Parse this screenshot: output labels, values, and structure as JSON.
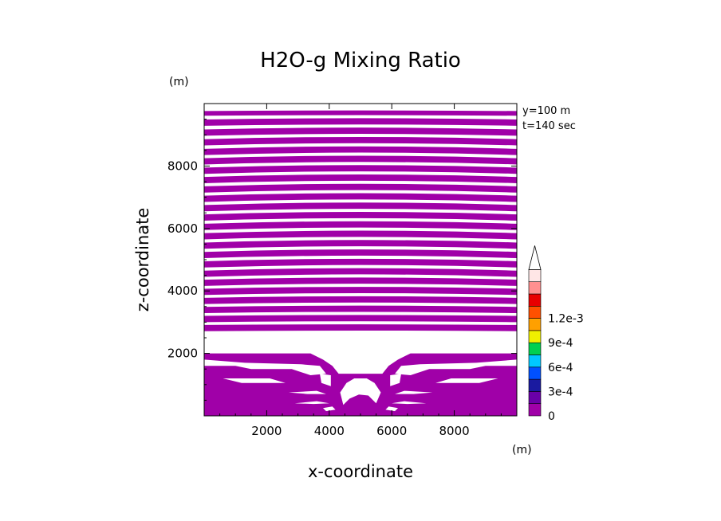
{
  "chart_data": {
    "type": "heatmap",
    "title": "H2O-g Mixing Ratio",
    "xlabel": "x-coordinate",
    "ylabel": "z-coordinate",
    "x_unit": "(m)",
    "y_unit": "(m)",
    "annotations": [
      "y=100 m",
      "t=140 sec"
    ],
    "xlim": [
      0,
      10000
    ],
    "ylim": [
      0,
      10000
    ],
    "x_ticks": [
      2000,
      4000,
      6000,
      8000
    ],
    "y_ticks": [
      2000,
      4000,
      6000,
      8000
    ],
    "colorbar": {
      "levels": [
        0,
        0.00015,
        0.0003,
        0.00045,
        0.0006,
        0.00075,
        0.0009,
        0.00105,
        0.0012,
        0.00135
      ],
      "colors": [
        "#a000a8",
        "#6a00a8",
        "#1a1aa0",
        "#0050ff",
        "#00c8ff",
        "#00d050",
        "#f0f000",
        "#ffa000",
        "#ff5000",
        "#e80000",
        "#ff9090",
        "#ffe6e6"
      ],
      "tick_labels": [
        "0",
        "3e-4",
        "6e-4",
        "9e-4",
        "1.2e-3"
      ],
      "tick_values": [
        0,
        0.0003,
        0.0006,
        0.0009,
        0.0012
      ],
      "extend": "max"
    },
    "filled_value_color": "#a000a8",
    "bands": [
      {
        "z": [
          9630,
          9780
        ],
        "x": [
          0,
          10000
        ],
        "bow": 20
      },
      {
        "z": [
          9330,
          9530
        ],
        "x": [
          0,
          10000
        ],
        "bow": 40
      },
      {
        "z": [
          9030,
          9230
        ],
        "x": [
          0,
          10000
        ],
        "bow": 60
      },
      {
        "z": [
          8730,
          8930
        ],
        "x": [
          0,
          10000
        ],
        "bow": 70
      },
      {
        "z": [
          8430,
          8630
        ],
        "x": [
          0,
          10000
        ],
        "bow": 80
      },
      {
        "z": [
          8130,
          8330
        ],
        "x": [
          0,
          10000
        ],
        "bow": 80
      },
      {
        "z": [
          7830,
          8030
        ],
        "x": [
          0,
          10000
        ],
        "bow": 80
      },
      {
        "z": [
          7530,
          7730
        ],
        "x": [
          0,
          10000
        ],
        "bow": 80
      },
      {
        "z": [
          7230,
          7430
        ],
        "x": [
          0,
          10000
        ],
        "bow": 80
      },
      {
        "z": [
          6930,
          7130
        ],
        "x": [
          0,
          10000
        ],
        "bow": 80
      },
      {
        "z": [
          6630,
          6830
        ],
        "x": [
          0,
          10000
        ],
        "bow": 80
      },
      {
        "z": [
          6330,
          6530
        ],
        "x": [
          0,
          10000
        ],
        "bow": 80
      },
      {
        "z": [
          6030,
          6230
        ],
        "x": [
          0,
          10000
        ],
        "bow": 80
      },
      {
        "z": [
          5730,
          5930
        ],
        "x": [
          0,
          10000
        ],
        "bow": 80
      },
      {
        "z": [
          5430,
          5630
        ],
        "x": [
          0,
          10000
        ],
        "bow": 80
      },
      {
        "z": [
          5130,
          5330
        ],
        "x": [
          0,
          10000
        ],
        "bow": 80
      },
      {
        "z": [
          4830,
          5030
        ],
        "x": [
          0,
          10000
        ],
        "bow": 80
      },
      {
        "z": [
          4530,
          4730
        ],
        "x": [
          0,
          10000
        ],
        "bow": 80
      },
      {
        "z": [
          4230,
          4430
        ],
        "x": [
          0,
          10000
        ],
        "bow": 70
      },
      {
        "z": [
          3930,
          4130
        ],
        "x": [
          0,
          10000
        ],
        "bow": 60
      },
      {
        "z": [
          3630,
          3830
        ],
        "x": [
          0,
          10000
        ],
        "bow": 50
      },
      {
        "z": [
          3330,
          3530
        ],
        "x": [
          0,
          10000
        ],
        "bow": 40
      },
      {
        "z": [
          3030,
          3230
        ],
        "x": [
          0,
          10000
        ],
        "bow": 30
      },
      {
        "z": [
          2730,
          2930
        ],
        "x": [
          0,
          10000
        ],
        "bow": 20
      }
    ],
    "lower_region": [
      [
        0,
        2000
      ],
      [
        3400,
        2000
      ],
      [
        3800,
        1800
      ],
      [
        4100,
        1600
      ],
      [
        4300,
        1350
      ],
      [
        5700,
        1350
      ],
      [
        5900,
        1600
      ],
      [
        6200,
        1800
      ],
      [
        6600,
        2000
      ],
      [
        10000,
        2000
      ],
      [
        10000,
        0
      ],
      [
        0,
        0
      ]
    ],
    "white_lower": [
      {
        "pts": [
          [
            0,
            1600
          ],
          [
            1000,
            1600
          ],
          [
            1500,
            1500
          ],
          [
            2800,
            1500
          ],
          [
            3400,
            1300
          ],
          [
            3900,
            1350
          ],
          [
            3700,
            1600
          ],
          [
            3100,
            1650
          ],
          [
            1300,
            1700
          ],
          [
            0,
            1800
          ]
        ]
      },
      {
        "pts": [
          [
            10000,
            1600
          ],
          [
            9000,
            1600
          ],
          [
            8500,
            1500
          ],
          [
            7200,
            1500
          ],
          [
            6600,
            1300
          ],
          [
            6100,
            1350
          ],
          [
            6300,
            1600
          ],
          [
            6900,
            1650
          ],
          [
            8700,
            1700
          ],
          [
            10000,
            1800
          ]
        ]
      },
      {
        "pts": [
          [
            600,
            1200
          ],
          [
            1200,
            1050
          ],
          [
            2600,
            1050
          ],
          [
            2100,
            1200
          ]
        ]
      },
      {
        "pts": [
          [
            9400,
            1200
          ],
          [
            8800,
            1050
          ],
          [
            7400,
            1050
          ],
          [
            7900,
            1200
          ]
        ]
      },
      {
        "pts": [
          [
            2700,
            750
          ],
          [
            3300,
            700
          ],
          [
            3900,
            700
          ],
          [
            3600,
            800
          ]
        ]
      },
      {
        "pts": [
          [
            7300,
            750
          ],
          [
            6700,
            700
          ],
          [
            6100,
            700
          ],
          [
            6400,
            800
          ]
        ]
      },
      {
        "pts": [
          [
            2900,
            400
          ],
          [
            3500,
            380
          ],
          [
            4000,
            400
          ],
          [
            3600,
            470
          ]
        ]
      },
      {
        "pts": [
          [
            7100,
            400
          ],
          [
            6500,
            380
          ],
          [
            6000,
            400
          ],
          [
            6400,
            470
          ]
        ]
      },
      {
        "pts": [
          [
            4350,
            750
          ],
          [
            4550,
            1050
          ],
          [
            4800,
            1200
          ],
          [
            5200,
            1200
          ],
          [
            5450,
            1050
          ],
          [
            5650,
            750
          ],
          [
            5500,
            400
          ],
          [
            5250,
            650
          ],
          [
            4950,
            680
          ],
          [
            4650,
            550
          ],
          [
            4450,
            350
          ]
        ]
      },
      {
        "pts": [
          [
            3700,
            1350
          ],
          [
            4050,
            1300
          ],
          [
            4050,
            950
          ],
          [
            3750,
            1050
          ]
        ]
      },
      {
        "pts": [
          [
            6300,
            1350
          ],
          [
            5950,
            1300
          ],
          [
            5950,
            950
          ],
          [
            6250,
            1050
          ]
        ]
      },
      {
        "pts": [
          [
            3800,
            250
          ],
          [
            4100,
            300
          ],
          [
            4200,
            200
          ],
          [
            3900,
            150
          ]
        ]
      },
      {
        "pts": [
          [
            6200,
            250
          ],
          [
            5900,
            300
          ],
          [
            5800,
            200
          ],
          [
            6100,
            150
          ]
        ]
      }
    ]
  }
}
